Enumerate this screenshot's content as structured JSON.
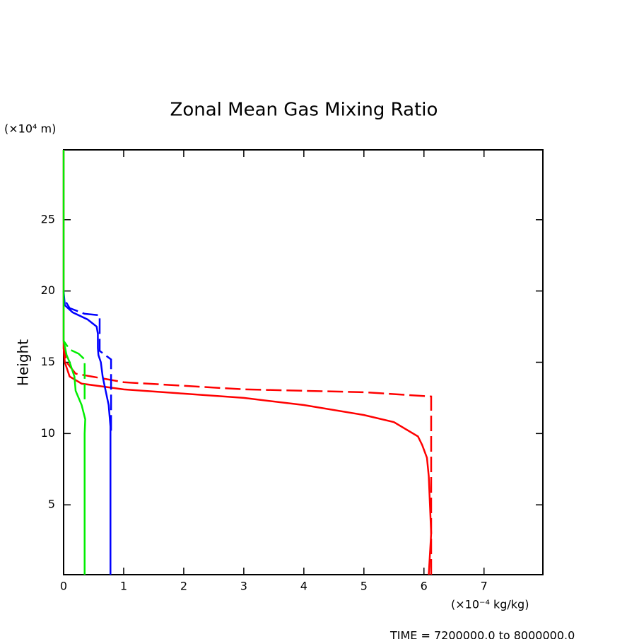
{
  "chart_data": {
    "type": "line",
    "title": "Zonal Mean Gas Mixing Ratio",
    "y_unit": "(×10⁴ m)",
    "ylabel": "Height",
    "x_unit": "(×10⁻⁴ kg/kg)",
    "footer": "TIME = 7200000.0 to 8000000.0",
    "xlim": [
      0,
      7.98
    ],
    "xticks": [
      0,
      1,
      2,
      3,
      4,
      5,
      6,
      7
    ],
    "ylim": [
      0.1,
      29.9
    ],
    "yticks": [
      5,
      10,
      15,
      20,
      25
    ],
    "series": [
      {
        "color": "#ff0000",
        "dashed": false,
        "values": [
          6.08,
          6.12,
          6.1,
          6.08,
          6.05,
          5.97,
          5.9,
          5.5,
          5.0,
          4.0,
          3.0,
          2.0,
          1.0,
          0.3,
          0.1,
          0.02,
          0,
          0
        ],
        "y": [
          0.1,
          3,
          5,
          7,
          8.3,
          9.2,
          9.8,
          10.8,
          11.3,
          12.0,
          12.5,
          12.8,
          13.1,
          13.5,
          14,
          15,
          16,
          29.9
        ]
      },
      {
        "color": "#ff0000",
        "dashed": true,
        "values": [
          6.12,
          6.12,
          5.0,
          3.0,
          1.0,
          0.2,
          0.05,
          0
        ],
        "y": [
          0.1,
          12.6,
          12.9,
          13.1,
          13.6,
          14.2,
          15,
          16
        ]
      },
      {
        "color": "#0000ff",
        "dashed": false,
        "values": [
          0.78,
          0.78,
          0.75,
          0.7,
          0.65,
          0.62,
          0.58,
          0.57,
          0.57,
          0.55,
          0.4,
          0.15,
          0.02,
          0
        ],
        "y": [
          0.1,
          10.5,
          12,
          13,
          14,
          15,
          15.5,
          16,
          17,
          17.5,
          18,
          18.5,
          19,
          20
        ]
      },
      {
        "color": "#0000ff",
        "dashed": true,
        "values": [
          0.79,
          0.79,
          0.6,
          0.6,
          0.35,
          0.1,
          0
        ],
        "y": [
          10.2,
          15.2,
          15.8,
          18.3,
          18.4,
          18.8,
          19.5
        ]
      },
      {
        "color": "#00ee00",
        "dashed": false,
        "values": [
          0.35,
          0.35,
          0.36,
          0.3,
          0.2,
          0.18,
          0.1,
          0.05,
          0,
          0
        ],
        "y": [
          0.1,
          10,
          11,
          12,
          13,
          14,
          15,
          15.5,
          16.5,
          29.9
        ]
      },
      {
        "color": "#00ee00",
        "dashed": true,
        "values": [
          0.35,
          0.35,
          0.25,
          0.1,
          0
        ],
        "y": [
          12.4,
          15.2,
          15.6,
          15.9,
          16.5
        ]
      }
    ]
  }
}
